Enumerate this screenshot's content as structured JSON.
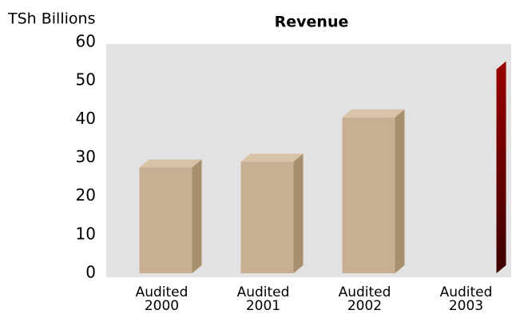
{
  "chart_data": {
    "type": "bar3d",
    "title": "Revenue",
    "y_label": "TSh Billions",
    "categories": [
      "Audited 2000",
      "Audited 2001",
      "Audited 2002",
      "Audited 2003"
    ],
    "values": [
      27.5,
      29,
      40.5,
      53
    ],
    "colors": [
      "#c8ae92",
      "#c8ae92",
      "#c8ae92",
      "#800000"
    ],
    "ylim": [
      0,
      60
    ],
    "yticks": [
      0,
      10,
      20,
      30,
      40,
      50,
      60
    ],
    "grid": false
  }
}
